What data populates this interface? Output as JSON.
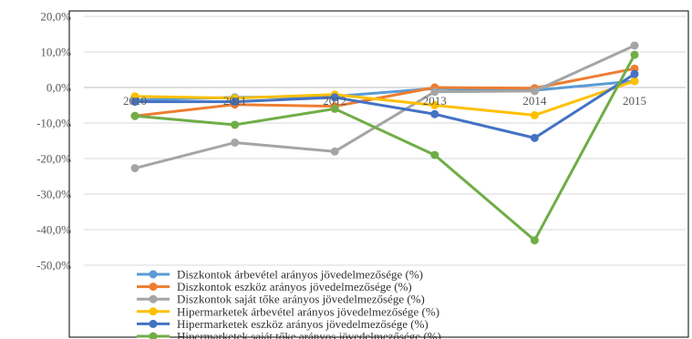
{
  "chart_data": {
    "type": "line",
    "title": "",
    "xlabel": "",
    "ylabel": "",
    "categories": [
      "2010",
      "2011",
      "2012",
      "2013",
      "2014",
      "2015"
    ],
    "ylim": [
      -50,
      20
    ],
    "ytick_values": [
      20,
      10,
      0,
      -10,
      -20,
      -30,
      -40,
      -50
    ],
    "ytick_labels": [
      "20,0%",
      "10,0%",
      "0,0%",
      "-10,0%",
      "-20,0%",
      "-30,0%",
      "-40,0%",
      "-50,0%"
    ],
    "grid": true,
    "legend_position": "bottom",
    "series": [
      {
        "name": "Diszkontok árbevétel arányos jövedelmezősége (%)",
        "color": "#5b9bd5",
        "values": [
          -3.5,
          -2.8,
          -2.5,
          -0.3,
          -0.8,
          1.8
        ]
      },
      {
        "name": "Diszkontok eszköz arányos jövedelmezősége (%)",
        "color": "#ed7d31",
        "values": [
          -8.0,
          -4.8,
          -5.3,
          0.0,
          -0.2,
          5.3
        ]
      },
      {
        "name": "Diszkontok saját tőke arányos jövedelmezősége (%)",
        "color": "#a5a5a5",
        "values": [
          -22.7,
          -15.5,
          -18.0,
          -1.2,
          -1.0,
          11.8
        ]
      },
      {
        "name": "Hipermarketek árbevétel arányos jövedelmezősége (%)",
        "color": "#ffc000",
        "values": [
          -2.5,
          -3.0,
          -2.0,
          -5.0,
          -7.8,
          1.8
        ]
      },
      {
        "name": "Hipermarketek eszköz arányos jövedelmezősége (%)",
        "color": "#4472c4",
        "values": [
          -4.0,
          -4.0,
          -2.8,
          -7.5,
          -14.2,
          3.8
        ]
      },
      {
        "name": "Hipermarketek saját tőke arányos jövedelmezősége (%)",
        "color": "#70ad47",
        "values": [
          -8.0,
          -10.5,
          -6.0,
          -19.0,
          -43.0,
          9.2
        ]
      }
    ]
  }
}
